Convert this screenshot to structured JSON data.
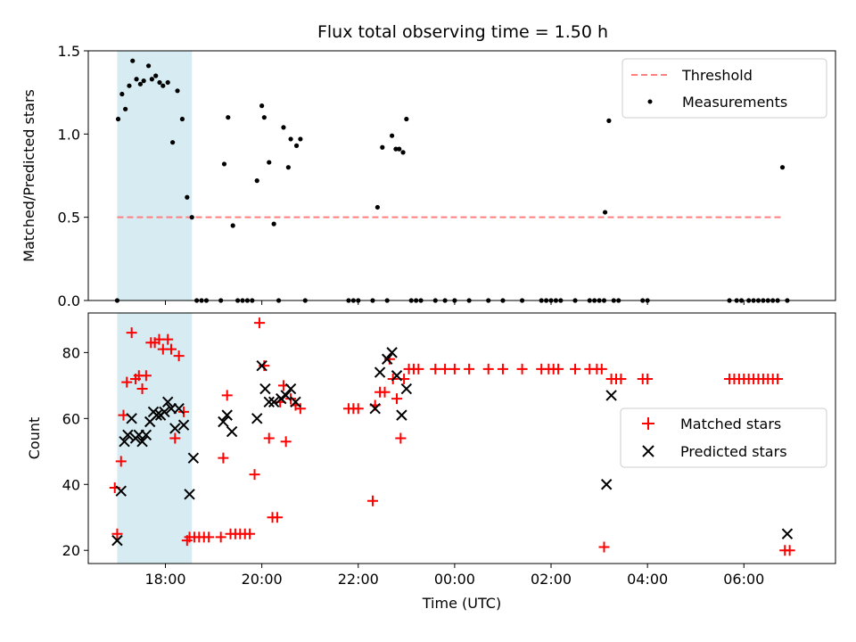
{
  "title": "Flux total observing time = 1.50 h",
  "colors": {
    "threshold": "#ff7f7f",
    "measurement": "#000000",
    "matched": "#ff0000",
    "predicted": "#000000",
    "shade": "#add8e6"
  },
  "chart_data": [
    {
      "type": "scatter",
      "ylabel": "Matched/Predicted stars",
      "ylim": [
        0,
        1.5
      ],
      "yticks": [
        0,
        0.5,
        1.0,
        1.5
      ],
      "ytick_labels": [
        "0.0",
        "0.5",
        "1.0",
        "1.5"
      ],
      "xlim": [
        16.4,
        31.9
      ],
      "xticks": [
        18,
        20,
        22,
        24,
        26,
        28,
        30
      ],
      "shaded_interval": [
        17.0,
        18.55
      ],
      "legend": {
        "placement": "top-right",
        "entries": [
          "Threshold",
          "Measurements"
        ]
      },
      "threshold": {
        "name": "Threshold",
        "value": 0.5,
        "x_range": [
          17.0,
          30.8
        ]
      },
      "series": [
        {
          "name": "Measurements",
          "points": [
            [
              17.0,
              0.0
            ],
            [
              17.02,
              1.09
            ],
            [
              17.1,
              1.24
            ],
            [
              17.17,
              1.15
            ],
            [
              17.25,
              1.29
            ],
            [
              17.32,
              1.44
            ],
            [
              17.4,
              1.33
            ],
            [
              17.48,
              1.3
            ],
            [
              17.55,
              1.32
            ],
            [
              17.65,
              1.41
            ],
            [
              17.72,
              1.33
            ],
            [
              17.8,
              1.35
            ],
            [
              17.88,
              1.31
            ],
            [
              17.95,
              1.29
            ],
            [
              18.05,
              1.31
            ],
            [
              18.15,
              0.95
            ],
            [
              18.25,
              1.26
            ],
            [
              18.35,
              1.09
            ],
            [
              18.45,
              0.62
            ],
            [
              18.55,
              0.5
            ],
            [
              18.65,
              0.0
            ],
            [
              18.75,
              0.0
            ],
            [
              18.85,
              0.0
            ],
            [
              19.15,
              0.0
            ],
            [
              19.22,
              0.82
            ],
            [
              19.3,
              1.1
            ],
            [
              19.4,
              0.45
            ],
            [
              19.5,
              0.0
            ],
            [
              19.6,
              0.0
            ],
            [
              19.7,
              0.0
            ],
            [
              19.8,
              0.0
            ],
            [
              19.9,
              0.72
            ],
            [
              20.0,
              1.17
            ],
            [
              20.05,
              1.1
            ],
            [
              20.15,
              0.83
            ],
            [
              20.25,
              0.46
            ],
            [
              20.35,
              0.0
            ],
            [
              20.45,
              1.04
            ],
            [
              20.55,
              0.8
            ],
            [
              20.6,
              0.97
            ],
            [
              20.72,
              0.93
            ],
            [
              20.8,
              0.97
            ],
            [
              20.9,
              0.0
            ],
            [
              21.8,
              0.0
            ],
            [
              21.9,
              0.0
            ],
            [
              22.0,
              0.0
            ],
            [
              22.3,
              0.0
            ],
            [
              22.4,
              0.56
            ],
            [
              22.5,
              0.92
            ],
            [
              22.6,
              0.0
            ],
            [
              22.7,
              0.99
            ],
            [
              22.78,
              0.91
            ],
            [
              22.85,
              0.91
            ],
            [
              22.93,
              0.89
            ],
            [
              23.0,
              1.09
            ],
            [
              23.1,
              0.0
            ],
            [
              23.2,
              0.0
            ],
            [
              23.3,
              0.0
            ],
            [
              23.6,
              0.0
            ],
            [
              23.8,
              0.0
            ],
            [
              24.0,
              0.0
            ],
            [
              24.3,
              0.0
            ],
            [
              24.7,
              0.0
            ],
            [
              25.0,
              0.0
            ],
            [
              25.4,
              0.0
            ],
            [
              25.8,
              0.0
            ],
            [
              25.9,
              0.0
            ],
            [
              26.0,
              0.0
            ],
            [
              26.1,
              0.0
            ],
            [
              26.2,
              0.0
            ],
            [
              26.5,
              0.0
            ],
            [
              26.8,
              0.0
            ],
            [
              26.9,
              0.0
            ],
            [
              27.0,
              0.0
            ],
            [
              27.1,
              0.0
            ],
            [
              27.12,
              0.53
            ],
            [
              27.2,
              1.08
            ],
            [
              27.3,
              0.0
            ],
            [
              27.4,
              0.0
            ],
            [
              27.9,
              0.0
            ],
            [
              28.0,
              0.0
            ],
            [
              29.7,
              0.0
            ],
            [
              29.85,
              0.0
            ],
            [
              29.95,
              0.0
            ],
            [
              30.1,
              0.0
            ],
            [
              30.2,
              0.0
            ],
            [
              30.3,
              0.0
            ],
            [
              30.4,
              0.0
            ],
            [
              30.5,
              0.0
            ],
            [
              30.6,
              0.0
            ],
            [
              30.7,
              0.0
            ],
            [
              30.8,
              0.8
            ],
            [
              30.9,
              0.0
            ]
          ]
        }
      ]
    },
    {
      "type": "scatter",
      "xlabel": "Time (UTC)",
      "ylabel": "Count",
      "ylim": [
        16,
        92
      ],
      "yticks": [
        20,
        40,
        60,
        80
      ],
      "ytick_labels": [
        "20",
        "40",
        "60",
        "80"
      ],
      "xlim": [
        16.4,
        31.9
      ],
      "xticks": [
        18,
        20,
        22,
        24,
        26,
        28,
        30
      ],
      "xtick_labels": [
        "18:00",
        "20:00",
        "22:00",
        "00:00",
        "02:00",
        "04:00",
        "06:00"
      ],
      "shaded_interval": [
        17.0,
        18.55
      ],
      "legend": {
        "placement": "center-right",
        "entries": [
          "Matched stars",
          "Predicted stars"
        ]
      },
      "series": [
        {
          "name": "Matched stars",
          "marker": "plus",
          "points": [
            [
              16.95,
              39
            ],
            [
              17.0,
              25
            ],
            [
              17.08,
              47
            ],
            [
              17.13,
              61
            ],
            [
              17.2,
              71
            ],
            [
              17.3,
              86
            ],
            [
              17.38,
              72
            ],
            [
              17.45,
              73
            ],
            [
              17.52,
              69
            ],
            [
              17.6,
              73
            ],
            [
              17.7,
              83
            ],
            [
              17.78,
              83
            ],
            [
              17.87,
              84
            ],
            [
              17.95,
              81
            ],
            [
              18.05,
              84
            ],
            [
              18.12,
              81
            ],
            [
              18.2,
              54
            ],
            [
              18.28,
              79
            ],
            [
              18.38,
              62
            ],
            [
              18.45,
              23
            ],
            [
              18.5,
              24
            ],
            [
              18.6,
              24
            ],
            [
              18.7,
              24
            ],
            [
              18.8,
              24
            ],
            [
              18.9,
              24
            ],
            [
              19.15,
              24
            ],
            [
              19.2,
              48
            ],
            [
              19.28,
              67
            ],
            [
              19.35,
              25
            ],
            [
              19.45,
              25
            ],
            [
              19.55,
              25
            ],
            [
              19.65,
              25
            ],
            [
              19.75,
              25
            ],
            [
              19.85,
              43
            ],
            [
              19.95,
              89
            ],
            [
              20.05,
              76
            ],
            [
              20.15,
              54
            ],
            [
              20.22,
              30
            ],
            [
              20.32,
              30
            ],
            [
              20.38,
              65
            ],
            [
              20.45,
              70
            ],
            [
              20.5,
              53
            ],
            [
              20.6,
              66
            ],
            [
              20.7,
              64
            ],
            [
              20.8,
              63
            ],
            [
              21.8,
              63
            ],
            [
              21.9,
              63
            ],
            [
              22.0,
              63
            ],
            [
              22.3,
              35
            ],
            [
              22.35,
              64
            ],
            [
              22.45,
              68
            ],
            [
              22.55,
              68
            ],
            [
              22.65,
              78
            ],
            [
              22.72,
              72
            ],
            [
              22.8,
              66
            ],
            [
              22.88,
              54
            ],
            [
              22.95,
              72
            ],
            [
              23.05,
              75
            ],
            [
              23.15,
              75
            ],
            [
              23.25,
              75
            ],
            [
              23.6,
              75
            ],
            [
              23.8,
              75
            ],
            [
              24.0,
              75
            ],
            [
              24.3,
              75
            ],
            [
              24.7,
              75
            ],
            [
              25.0,
              75
            ],
            [
              25.4,
              75
            ],
            [
              25.8,
              75
            ],
            [
              25.95,
              75
            ],
            [
              26.05,
              75
            ],
            [
              26.15,
              75
            ],
            [
              26.5,
              75
            ],
            [
              26.8,
              75
            ],
            [
              26.95,
              75
            ],
            [
              27.05,
              75
            ],
            [
              27.1,
              21
            ],
            [
              27.25,
              72
            ],
            [
              27.35,
              72
            ],
            [
              27.45,
              72
            ],
            [
              27.9,
              72
            ],
            [
              28.0,
              72
            ],
            [
              29.7,
              72
            ],
            [
              29.8,
              72
            ],
            [
              29.9,
              72
            ],
            [
              30.0,
              72
            ],
            [
              30.1,
              72
            ],
            [
              30.2,
              72
            ],
            [
              30.3,
              72
            ],
            [
              30.4,
              72
            ],
            [
              30.5,
              72
            ],
            [
              30.6,
              72
            ],
            [
              30.7,
              72
            ],
            [
              30.85,
              20
            ],
            [
              30.95,
              20
            ]
          ]
        },
        {
          "name": "Predicted stars",
          "marker": "x",
          "points": [
            [
              17.0,
              23
            ],
            [
              17.08,
              38
            ],
            [
              17.15,
              53
            ],
            [
              17.22,
              55
            ],
            [
              17.3,
              60
            ],
            [
              17.38,
              54
            ],
            [
              17.45,
              55
            ],
            [
              17.52,
              53
            ],
            [
              17.6,
              55
            ],
            [
              17.68,
              59
            ],
            [
              17.75,
              62
            ],
            [
              17.82,
              61
            ],
            [
              17.9,
              61
            ],
            [
              17.98,
              62
            ],
            [
              18.05,
              65
            ],
            [
              18.12,
              63
            ],
            [
              18.2,
              57
            ],
            [
              18.28,
              63
            ],
            [
              18.38,
              58
            ],
            [
              18.5,
              37
            ],
            [
              18.58,
              48
            ],
            [
              19.2,
              59
            ],
            [
              19.28,
              61
            ],
            [
              19.38,
              56
            ],
            [
              19.9,
              60
            ],
            [
              20.0,
              76
            ],
            [
              20.07,
              69
            ],
            [
              20.15,
              65
            ],
            [
              20.25,
              65
            ],
            [
              20.4,
              66
            ],
            [
              20.5,
              67
            ],
            [
              20.6,
              69
            ],
            [
              20.7,
              65
            ],
            [
              22.35,
              63
            ],
            [
              22.45,
              74
            ],
            [
              22.6,
              78
            ],
            [
              22.7,
              80
            ],
            [
              22.8,
              73
            ],
            [
              22.9,
              61
            ],
            [
              23.0,
              69
            ],
            [
              27.15,
              40
            ],
            [
              27.25,
              67
            ],
            [
              30.9,
              25
            ]
          ]
        }
      ]
    }
  ]
}
